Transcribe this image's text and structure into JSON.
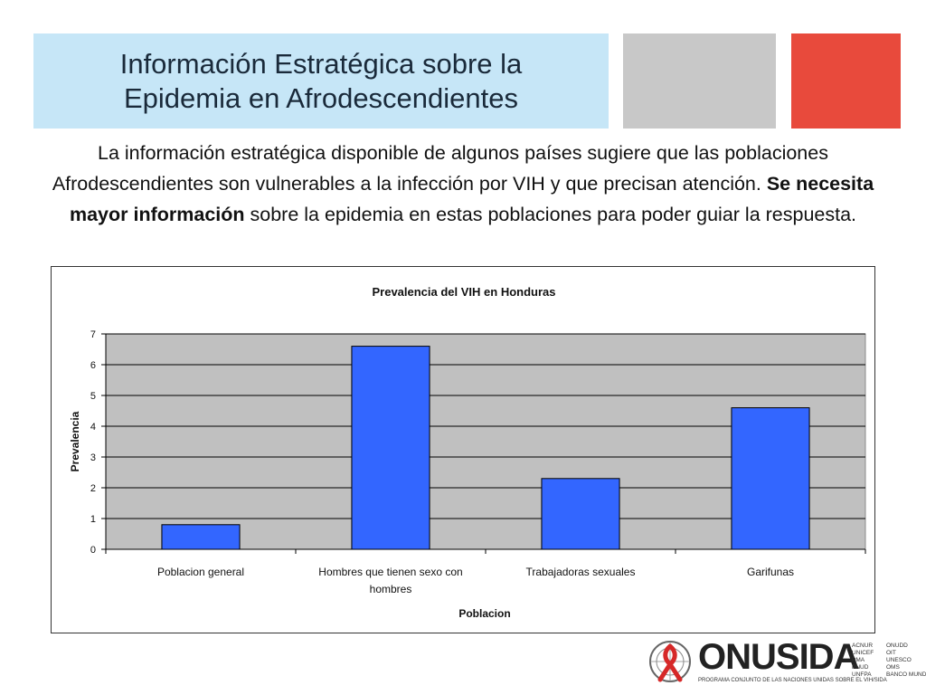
{
  "slide": {
    "title": "Información Estratégica sobre la\nEpidemia en Afrodescendientes",
    "intro_part1": "La información estratégica disponible de algunos países sugiere que las poblaciones Afrodescendientes son vulnerables a la infección por VIH y que precisan atención. ",
    "intro_bold": "Se necesita mayor información",
    "intro_part2": " sobre la epidemia en estas poblaciones para poder guiar la respuesta."
  },
  "colors": {
    "title_bg": "#c6e6f7",
    "gray_accent": "#c8c8c8",
    "red_accent": "#e84a3c",
    "bar_fill": "#3366ff",
    "plot_bg": "#c0c0c0",
    "ribbon_red": "#d62828"
  },
  "chart_data": {
    "type": "bar",
    "title": "Prevalencia del VIH en Honduras",
    "xlabel": "Poblacion",
    "ylabel": "Prevalencia",
    "categories": [
      "Poblacion general",
      "Hombres que tienen sexo con hombres",
      "Trabajadoras sexuales",
      "Garifunas"
    ],
    "values": [
      0.8,
      6.6,
      2.3,
      4.6
    ],
    "ylim": [
      0,
      7
    ],
    "yticks": [
      0,
      1,
      2,
      3,
      4,
      5,
      6,
      7
    ],
    "grid": true,
    "legend": "none"
  },
  "logo": {
    "brand": "ONUSIDA",
    "subtitle": "PROGRAMA CONJUNTO DE LAS NACIONES UNIDAS SOBRE EL VIH/SIDA",
    "partners_col1": [
      "ACNUR",
      "UNICEF",
      "PMA",
      "PNUD",
      "UNFPA"
    ],
    "partners_col2": [
      "ONUDD",
      "OIT",
      "UNESCO",
      "OMS",
      "BANCO MUNDIAL"
    ],
    "emblem_icon": "un-emblem-red-ribbon-icon"
  }
}
